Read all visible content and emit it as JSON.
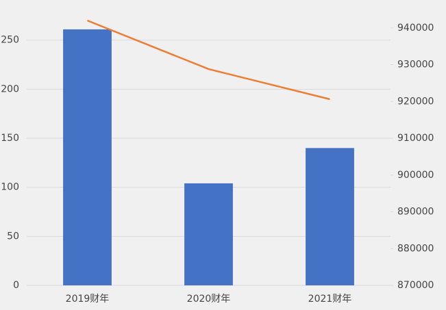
{
  "chart_data": {
    "type": "bar-line",
    "categories": [
      "2019财年",
      "2020财年",
      "2021财年"
    ],
    "series": [
      {
        "type": "bar",
        "color": "#4472c4",
        "values": [
          261,
          104,
          140
        ]
      },
      {
        "type": "line",
        "color": "#ed7d31",
        "axis": "y2",
        "values": [
          942000,
          928800,
          920600
        ]
      }
    ],
    "ylim": [
      0,
      270
    ],
    "yticks": [
      0,
      50,
      100,
      150,
      200,
      250
    ],
    "y2lim": [
      870000,
      942000
    ],
    "y2ticks": [
      870000,
      880000,
      890000,
      900000,
      910000,
      920000,
      930000,
      940000
    ],
    "grid": true
  }
}
